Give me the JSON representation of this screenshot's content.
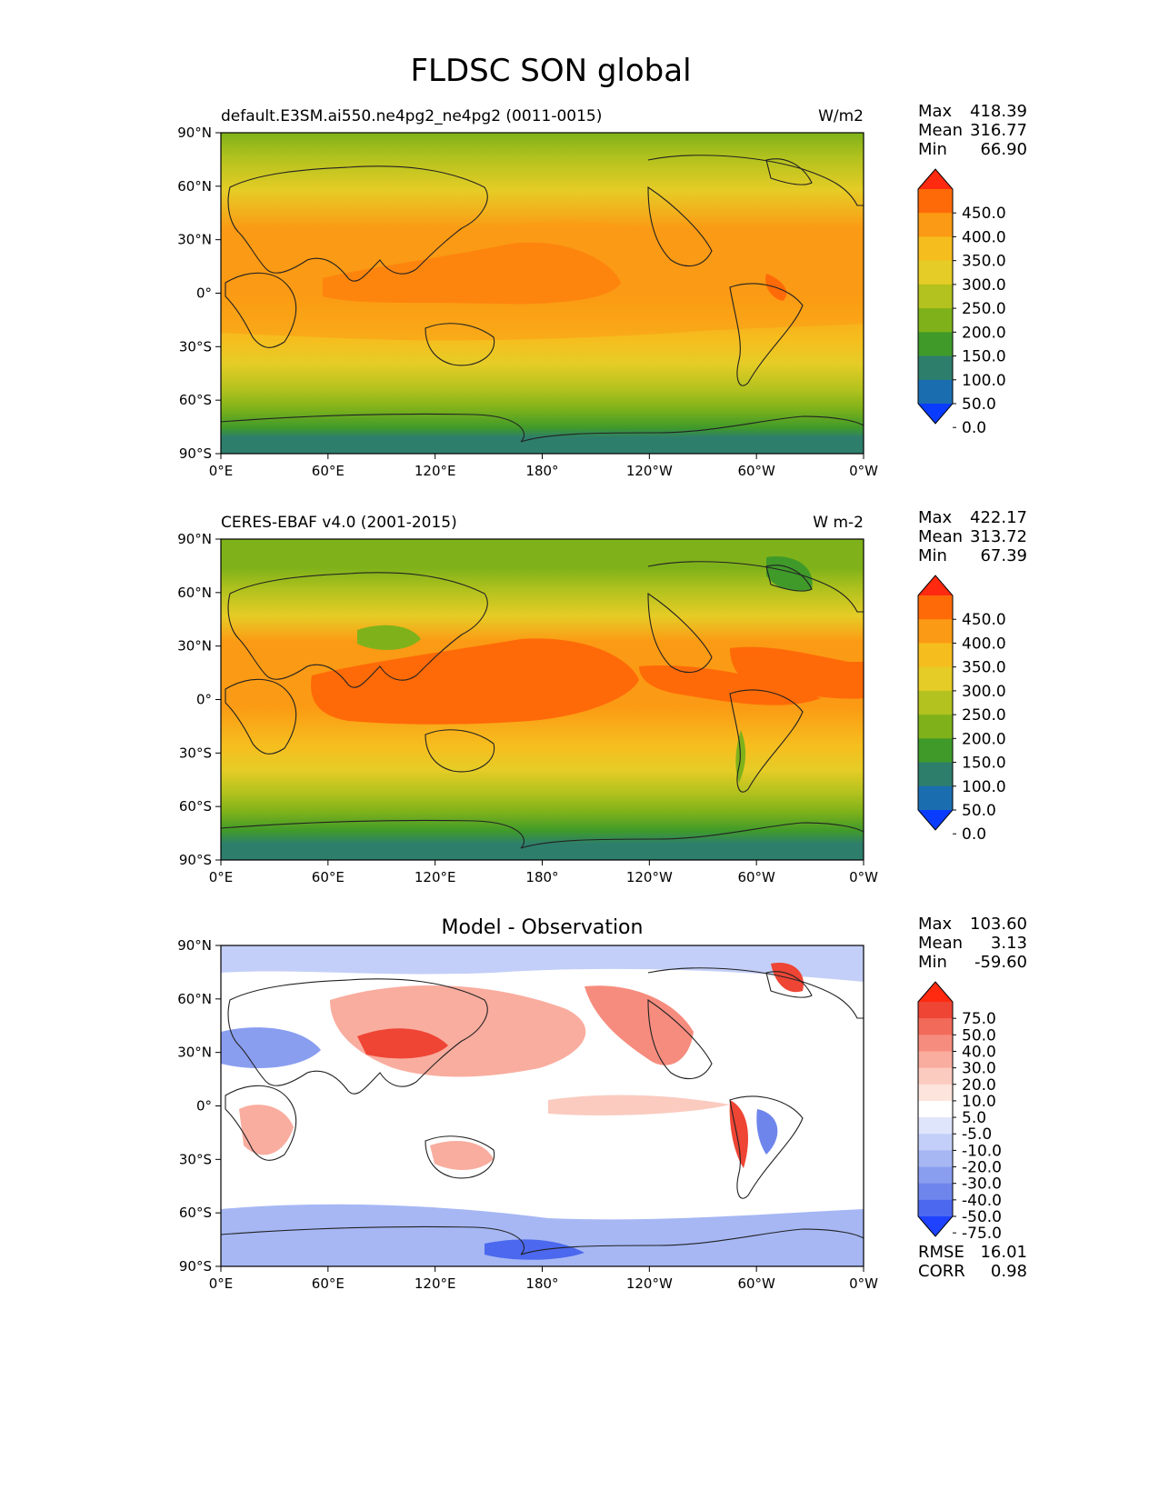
{
  "figure": {
    "title": "FLDSC SON global"
  },
  "panels": [
    {
      "id": "model",
      "left_title": "default.E3SM.ai550.ne4pg2_ne4pg2 (0011-0015)",
      "center_title": "",
      "units": "W/m2",
      "stats": [
        {
          "label": "Max",
          "value": "418.39"
        },
        {
          "label": "Mean",
          "value": "316.77"
        },
        {
          "label": "Min",
          "value": "66.90"
        }
      ],
      "colorbar": "absolute",
      "field": "model"
    },
    {
      "id": "obs",
      "left_title": "CERES-EBAF v4.0 (2001-2015)",
      "center_title": "",
      "units": "W m-2",
      "stats": [
        {
          "label": "Max",
          "value": "422.17"
        },
        {
          "label": "Mean",
          "value": "313.72"
        },
        {
          "label": "Min",
          "value": "67.39"
        }
      ],
      "colorbar": "absolute",
      "field": "obs"
    },
    {
      "id": "diff",
      "left_title": "",
      "center_title": "Model - Observation",
      "units": "",
      "stats": [
        {
          "label": "Max",
          "value": "103.60"
        },
        {
          "label": "Mean",
          "value": "3.13"
        },
        {
          "label": "Min",
          "value": "-59.60"
        }
      ],
      "colorbar": "diff",
      "field": "diff",
      "extra_stats": [
        {
          "label": "RMSE",
          "value": "16.01"
        },
        {
          "label": "CORR",
          "value": "0.98"
        }
      ]
    }
  ],
  "axes": {
    "lat_ticks": [
      "90°N",
      "60°N",
      "30°N",
      "0°",
      "30°S",
      "60°S",
      "90°S"
    ],
    "lon_ticks": [
      "0°E",
      "60°E",
      "120°E",
      "180°",
      "120°W",
      "60°W",
      "0°W"
    ]
  },
  "colorbars": {
    "absolute": {
      "labels": [
        "450.0",
        "400.0",
        "350.0",
        "300.0",
        "250.0",
        "200.0",
        "150.0",
        "100.0",
        "50.0",
        "0.0"
      ],
      "colors": [
        "#ff2a10",
        "#ff6a08",
        "#fb9a14",
        "#f6bd1e",
        "#e6cc26",
        "#b3c21e",
        "#7fb21a",
        "#3f9a2a",
        "#2e7e6c",
        "#1a6eb0",
        "#0a3cff"
      ]
    },
    "diff": {
      "labels": [
        "75.0",
        "50.0",
        "40.0",
        "30.0",
        "20.0",
        "10.0",
        "5.0",
        "-5.0",
        "-10.0",
        "-20.0",
        "-30.0",
        "-40.0",
        "-50.0",
        "-75.0"
      ],
      "colors": [
        "#ff2a10",
        "#ee4535",
        "#f26a5a",
        "#f68c7e",
        "#f9ad9f",
        "#fbcbc0",
        "#fde4dc",
        "#ffffff",
        "#dfe5fb",
        "#c3cff8",
        "#a6b7f4",
        "#8a9ef0",
        "#6e86ec",
        "#4c68ee",
        "#1e42ff"
      ]
    }
  }
}
